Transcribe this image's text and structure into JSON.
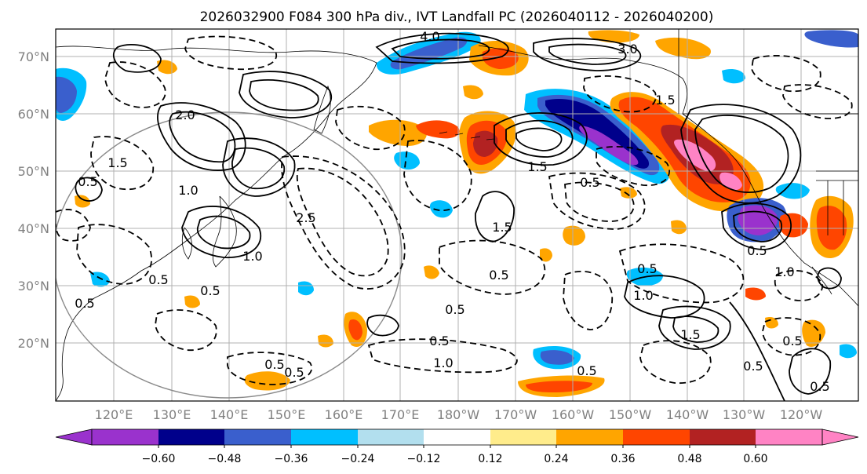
{
  "title": "2026032900 F084 300 hPa div., IVT Landfall PC (2026040112 - 2026040200)",
  "map": {
    "lat_labels": [
      "70°N",
      "60°N",
      "50°N",
      "40°N",
      "30°N",
      "20°N"
    ],
    "lon_labels": [
      "120°E",
      "130°E",
      "140°E",
      "150°E",
      "160°E",
      "170°E",
      "180°W",
      "170°W",
      "160°W",
      "150°W",
      "140°W",
      "130°W",
      "120°W"
    ],
    "contour_labels": [
      "2.0",
      "1.5",
      "0.5",
      "1.0",
      "4.0",
      "3.0",
      "2.5",
      "0.5",
      "1.0",
      "0.5",
      "0.5",
      "0.5",
      "0.5",
      "1.0",
      "0.5",
      "1.5",
      "0.5",
      "0.5",
      "0.5",
      "0.5",
      "1.0",
      "0.5",
      "1.5",
      "1.5",
      "0.5",
      "1.0",
      "0.5",
      "1.5",
      "0.5",
      "0.5"
    ]
  },
  "colorbar": {
    "tick_labels": [
      "−0.60",
      "−0.48",
      "−0.36",
      "−0.24",
      "−0.12",
      "0.12",
      "0.24",
      "0.36",
      "0.48",
      "0.60"
    ],
    "colors": [
      "#9a32cd",
      "#00008b",
      "#3a5fcd",
      "#00bfff",
      "#b2dfee",
      "#ffffff",
      "#ffec8b",
      "#ffa500",
      "#ff4500",
      "#b22222",
      "#ff83c4",
      "#ff83c4"
    ]
  }
}
